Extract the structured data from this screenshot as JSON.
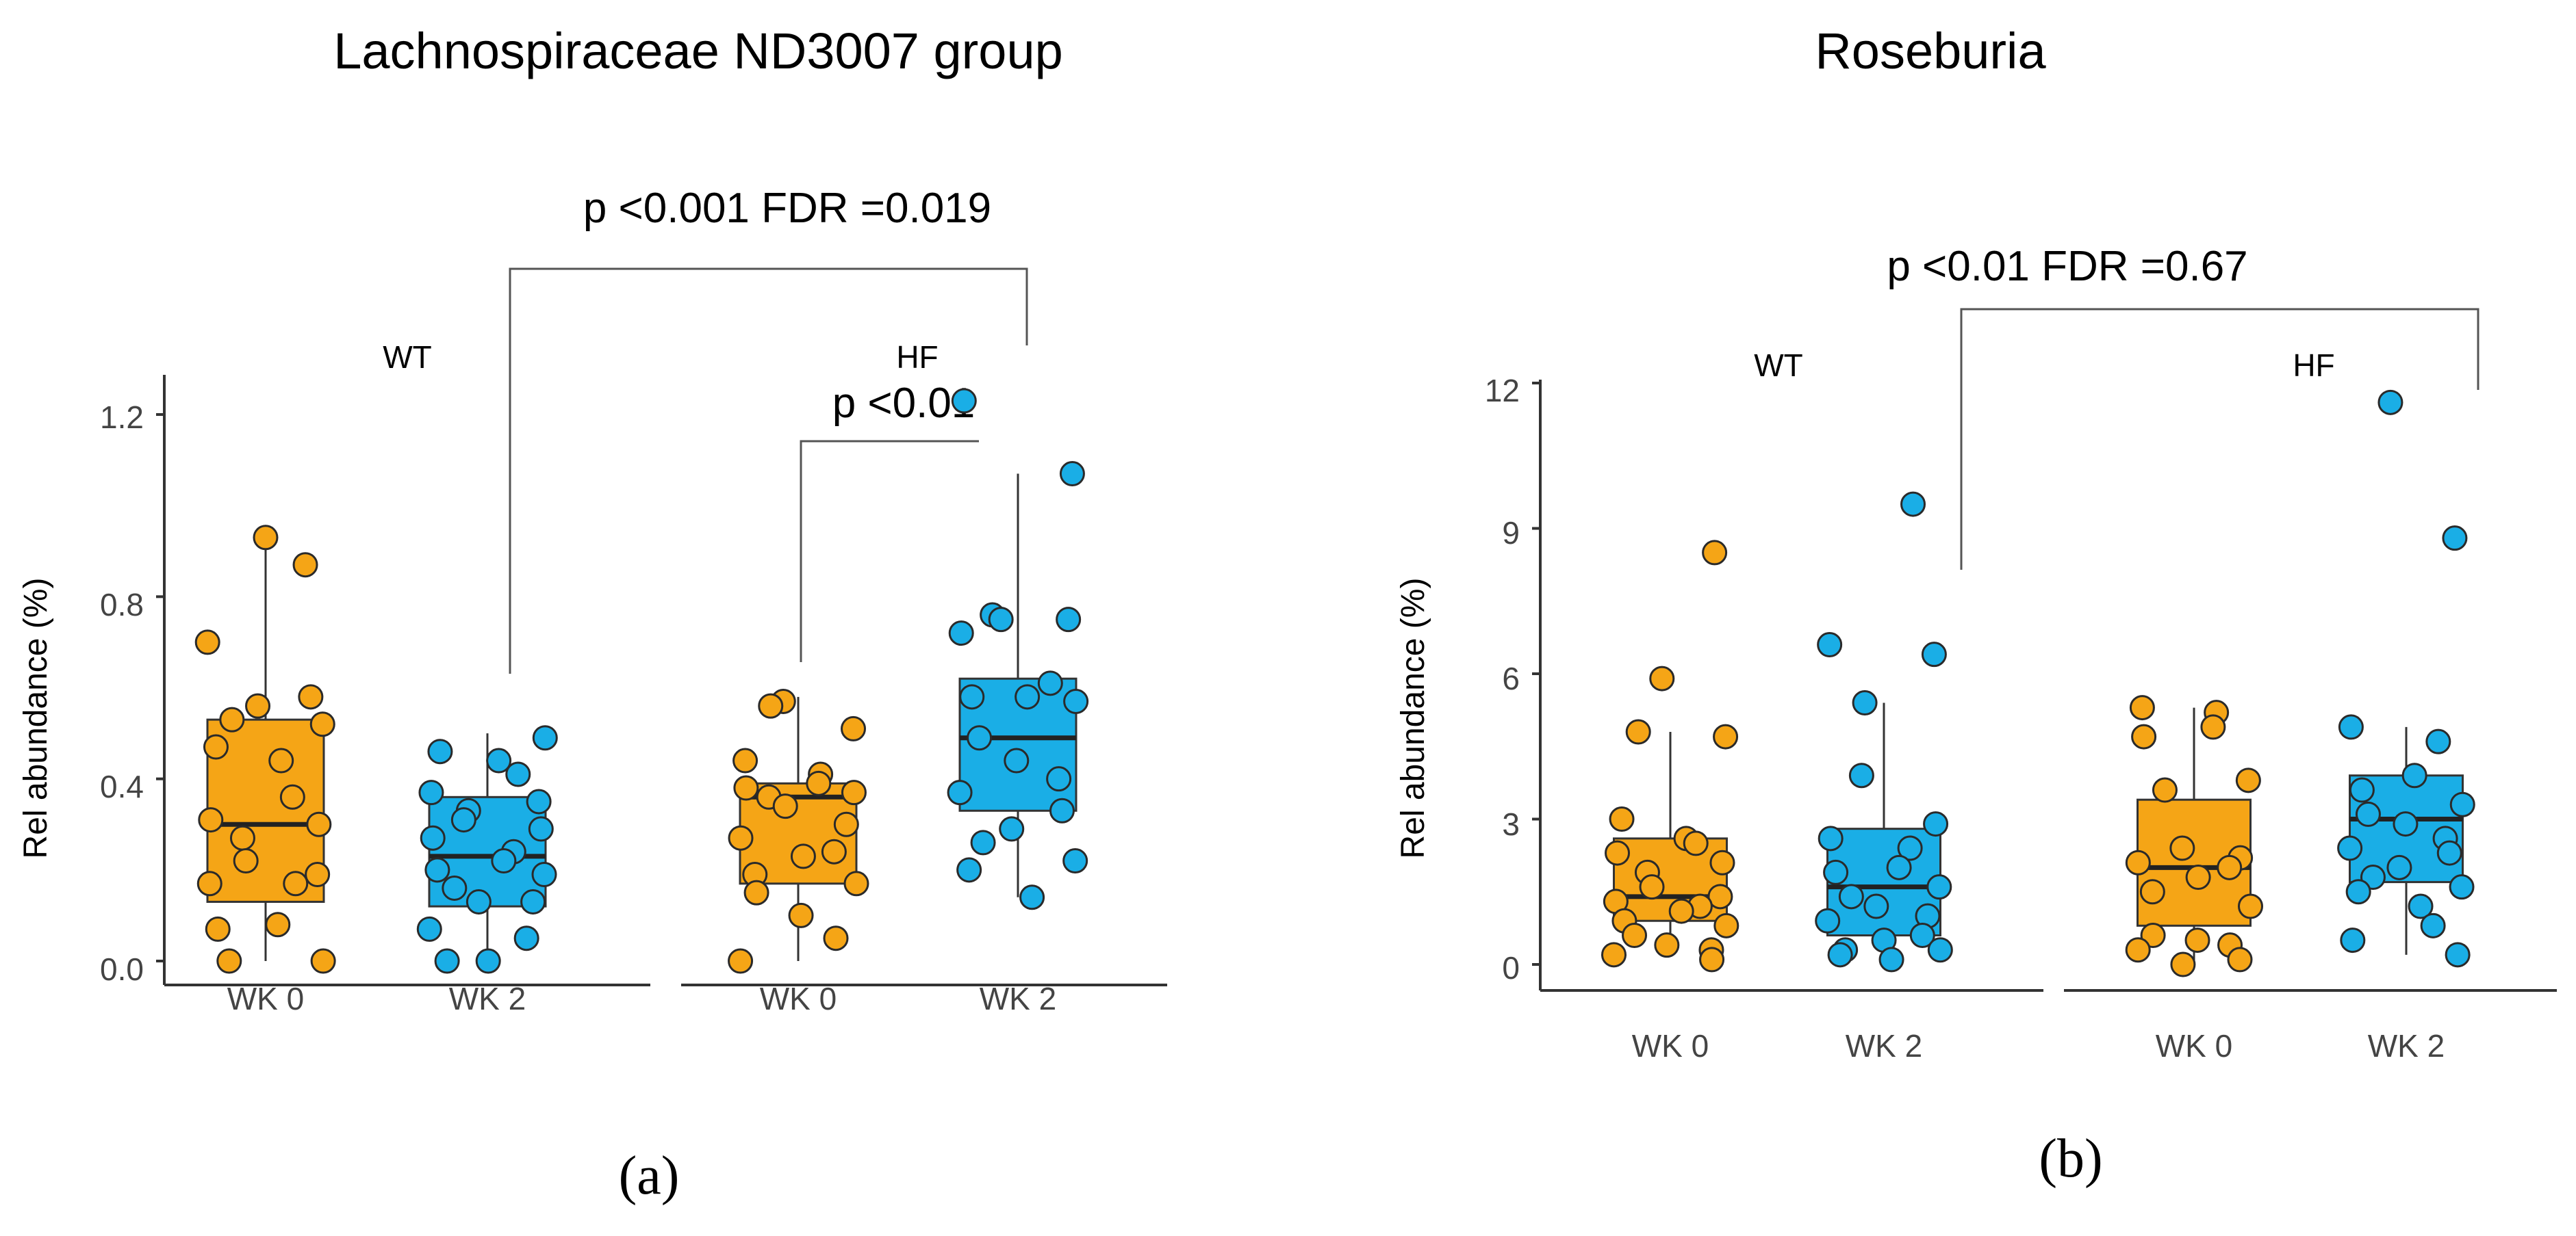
{
  "chart_data": [
    {
      "type": "box",
      "title": "Lachnospiraceae  ND3007 group",
      "panel_label": "(a)",
      "ylabel": "Rel abundance (%)",
      "ylim": [
        0,
        1.25
      ],
      "yticks": [
        "0.0",
        "0.4",
        "0.8",
        "1.2"
      ],
      "ytick_values": [
        0,
        0.4,
        0.8,
        1.2
      ],
      "facets": [
        "WT",
        "HF"
      ],
      "categories": [
        "WK 0",
        "WK 2"
      ],
      "colors": {
        "WK 0": "#F5A516",
        "WK 2": "#1AAEE6"
      },
      "boxes": [
        {
          "facet": "WT",
          "category": "WK 0",
          "lower_whisker": 0.0,
          "q1": 0.13,
          "median": 0.3,
          "q3": 0.53,
          "upper_whisker": 0.93,
          "points": [
            0.93,
            0.87,
            0.7,
            0.58,
            0.56,
            0.53,
            0.52,
            0.47,
            0.44,
            0.36,
            0.31,
            0.3,
            0.27,
            0.22,
            0.19,
            0.17,
            0.17,
            0.08,
            0.07,
            0.0,
            0.0
          ]
        },
        {
          "facet": "WT",
          "category": "WK 2",
          "lower_whisker": 0.0,
          "q1": 0.12,
          "median": 0.23,
          "q3": 0.36,
          "upper_whisker": 0.5,
          "points": [
            0.49,
            0.46,
            0.44,
            0.41,
            0.37,
            0.35,
            0.33,
            0.31,
            0.29,
            0.27,
            0.24,
            0.22,
            0.2,
            0.19,
            0.16,
            0.13,
            0.13,
            0.07,
            0.05,
            0.0,
            0.0
          ]
        },
        {
          "facet": "HF",
          "category": "WK 0",
          "lower_whisker": 0.0,
          "q1": 0.17,
          "median": 0.36,
          "q3": 0.39,
          "upper_whisker": 0.58,
          "points": [
            0.57,
            0.56,
            0.51,
            0.44,
            0.41,
            0.39,
            0.38,
            0.37,
            0.36,
            0.34,
            0.3,
            0.27,
            0.24,
            0.23,
            0.19,
            0.17,
            0.15,
            0.1,
            0.05,
            0.0
          ]
        },
        {
          "facet": "HF",
          "category": "WK 2",
          "lower_whisker": 0.14,
          "q1": 0.33,
          "median": 0.49,
          "q3": 0.62,
          "upper_whisker": 1.07,
          "points": [
            1.23,
            1.07,
            0.76,
            0.75,
            0.75,
            0.72,
            0.61,
            0.58,
            0.58,
            0.57,
            0.49,
            0.44,
            0.4,
            0.37,
            0.33,
            0.29,
            0.26,
            0.22,
            0.2,
            0.14
          ]
        }
      ],
      "annotations": [
        {
          "text": "p <0.001   FDR =0.019",
          "from": "WT WK 2",
          "to": "HF WK 2"
        },
        {
          "text": "p <0.01",
          "from": "HF WK 0",
          "to": "HF WK 2"
        }
      ]
    },
    {
      "type": "box",
      "title": "Roseburia",
      "panel_label": "(b)",
      "ylabel": "Rel abundance (%)",
      "ylim": [
        0,
        12.3
      ],
      "yticks": [
        "0",
        "3",
        "6",
        "9",
        "12"
      ],
      "ytick_values": [
        0,
        3,
        6,
        9,
        12
      ],
      "facets": [
        "WT",
        "HF"
      ],
      "categories": [
        "WK 0",
        "WK 2"
      ],
      "colors": {
        "WK 0": "#F5A516",
        "WK 2": "#1AAEE6"
      },
      "boxes": [
        {
          "facet": "WT",
          "category": "WK 0",
          "lower_whisker": 0.2,
          "q1": 0.9,
          "median": 1.4,
          "q3": 2.6,
          "upper_whisker": 4.8,
          "points": [
            8.5,
            5.9,
            4.8,
            4.7,
            3.0,
            2.6,
            2.5,
            2.3,
            2.1,
            1.9,
            1.6,
            1.4,
            1.3,
            1.2,
            1.1,
            0.9,
            0.8,
            0.6,
            0.4,
            0.3,
            0.2,
            0.1
          ]
        },
        {
          "facet": "WT",
          "category": "WK 2",
          "lower_whisker": 0.1,
          "q1": 0.6,
          "median": 1.6,
          "q3": 2.8,
          "upper_whisker": 5.4,
          "points": [
            9.5,
            6.6,
            6.4,
            5.4,
            3.9,
            2.9,
            2.6,
            2.4,
            2.0,
            1.9,
            1.6,
            1.4,
            1.2,
            1.0,
            0.9,
            0.6,
            0.5,
            0.3,
            0.3,
            0.2,
            0.1
          ]
        },
        {
          "facet": "HF",
          "category": "WK 0",
          "lower_whisker": 0.0,
          "q1": 0.8,
          "median": 2.0,
          "q3": 3.4,
          "upper_whisker": 5.3,
          "points": [
            5.3,
            5.2,
            4.9,
            4.7,
            3.8,
            3.6,
            2.4,
            2.2,
            2.1,
            2.0,
            1.8,
            1.5,
            1.2,
            0.6,
            0.5,
            0.4,
            0.3,
            0.1,
            0.0
          ]
        },
        {
          "facet": "HF",
          "category": "WK 2",
          "lower_whisker": 0.2,
          "q1": 1.7,
          "median": 3.0,
          "q3": 3.9,
          "upper_whisker": 4.9,
          "points": [
            11.6,
            8.8,
            4.9,
            4.6,
            3.9,
            3.6,
            3.3,
            3.1,
            2.9,
            2.6,
            2.4,
            2.3,
            2.0,
            1.8,
            1.6,
            1.5,
            1.2,
            0.8,
            0.5,
            0.2
          ]
        }
      ],
      "annotations": [
        {
          "text": "p <0.01   FDR =0.67",
          "from": "WT WK 2",
          "to": "HF WK 2"
        }
      ]
    }
  ]
}
